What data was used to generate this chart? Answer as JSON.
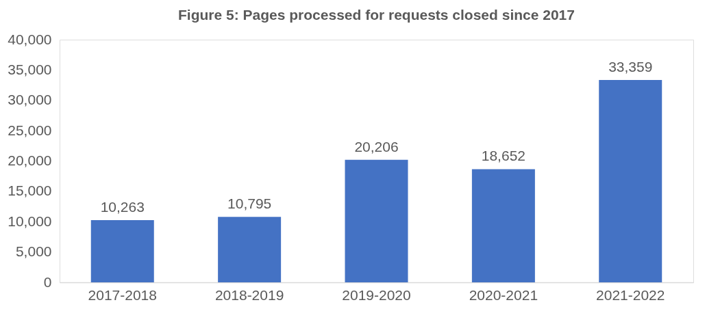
{
  "chart_data": {
    "type": "bar",
    "title": "Figure 5: Pages processed for requests closed since 2017",
    "categories": [
      "2017-2018",
      "2018-2019",
      "2019-2020",
      "2020-2021",
      "2021-2022"
    ],
    "values": [
      10263,
      10795,
      20206,
      18652,
      33359
    ],
    "color": "#4472c4",
    "ylim": [
      0,
      40000
    ],
    "yticks": [
      {
        "value": 0,
        "label": "0"
      },
      {
        "value": 5000,
        "label": "5,000"
      },
      {
        "value": 10000,
        "label": "10,000"
      },
      {
        "value": 15000,
        "label": "15,000"
      },
      {
        "value": 20000,
        "label": "20,000"
      },
      {
        "value": 25000,
        "label": "25,000"
      },
      {
        "value": 30000,
        "label": "30,000"
      },
      {
        "value": 35000,
        "label": "35,000"
      },
      {
        "value": 40000,
        "label": "40,000"
      }
    ],
    "value_labels": [
      "10,263",
      "10,795",
      "20,206",
      "18,652",
      "33,359"
    ],
    "grid": false
  }
}
